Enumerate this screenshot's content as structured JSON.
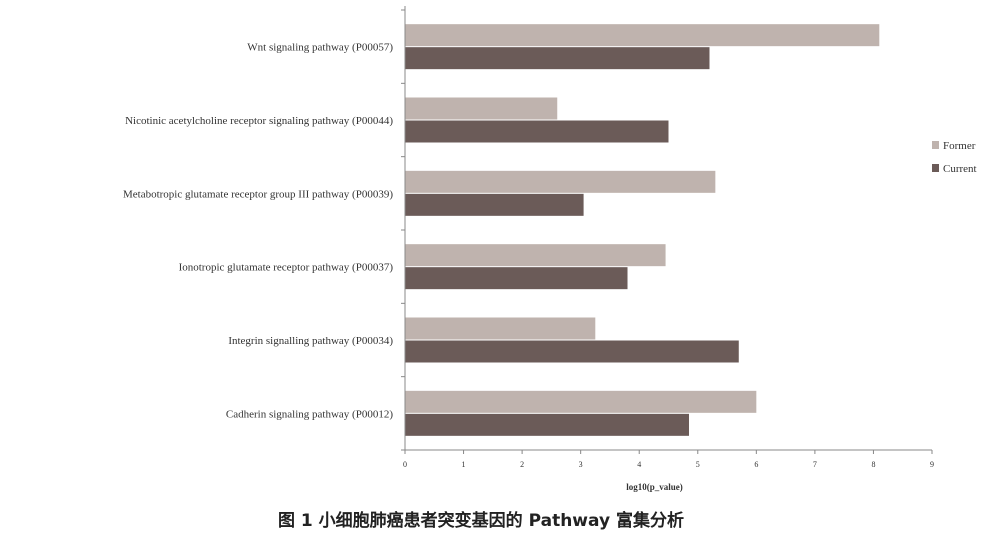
{
  "chart_data": {
    "type": "bar",
    "orientation": "horizontal",
    "categories": [
      "Wnt signaling pathway (P00057)",
      "Nicotinic acetylcholine receptor signaling pathway (P00044)",
      "Metabotropic glutamate receptor group III pathway (P00039)",
      "Ionotropic glutamate receptor pathway (P00037)",
      "Integrin signalling pathway (P00034)",
      "Cadherin signaling pathway (P00012)"
    ],
    "series": [
      {
        "name": "Former",
        "color": "#bfb3ae",
        "values": [
          8.1,
          2.6,
          5.3,
          4.45,
          3.25,
          6.0
        ]
      },
      {
        "name": "Current",
        "color": "#6b5b58",
        "values": [
          5.2,
          4.5,
          3.05,
          3.8,
          5.7,
          4.85
        ]
      }
    ],
    "xlabel": "log10(p_value)",
    "xlim": [
      0,
      9
    ],
    "xticks": [
      "0",
      "1",
      "2",
      "3",
      "4",
      "5",
      "6",
      "7",
      "8",
      "9"
    ],
    "grid": false,
    "legend_position": "right"
  },
  "caption": "图 1  小细胞肺癌患者突变基因的 Pathway 富集分析"
}
